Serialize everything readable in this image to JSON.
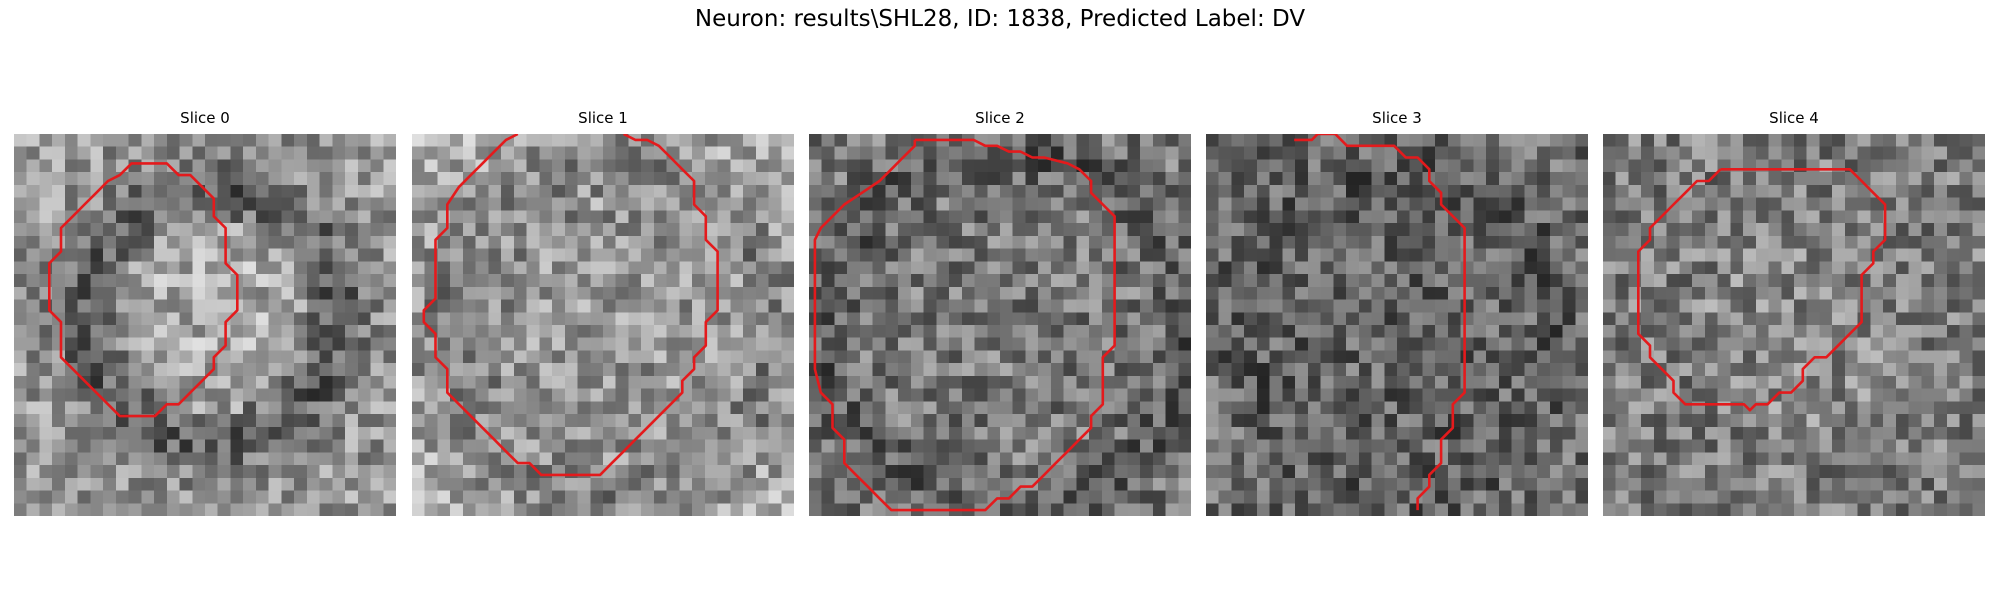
{
  "title": "Neuron: results\\SHL28, ID: 1838, Predicted Label: DV",
  "contour_color": "#e41a1c",
  "panels": [
    {
      "title": "Slice 0",
      "contour": [
        [
          9.2,
          2.0
        ],
        [
          10.4,
          2.0
        ],
        [
          11.2,
          2.8
        ],
        [
          12.0,
          2.8
        ],
        [
          13.6,
          4.4
        ],
        [
          13.6,
          5.6
        ],
        [
          14.4,
          6.4
        ],
        [
          14.4,
          8.8
        ],
        [
          15.2,
          9.6
        ],
        [
          15.2,
          12.0
        ],
        [
          14.4,
          12.8
        ],
        [
          14.4,
          14.4
        ],
        [
          13.6,
          15.2
        ],
        [
          13.6,
          16.0
        ],
        [
          12.8,
          16.8
        ],
        [
          12.0,
          17.6
        ],
        [
          11.2,
          18.4
        ],
        [
          10.4,
          18.4
        ],
        [
          9.6,
          19.2
        ],
        [
          7.2,
          19.2
        ],
        [
          6.4,
          18.4
        ],
        [
          5.6,
          17.6
        ],
        [
          4.8,
          16.8
        ],
        [
          4.0,
          16.0
        ],
        [
          3.2,
          15.2
        ],
        [
          3.2,
          12.8
        ],
        [
          2.4,
          12.0
        ],
        [
          2.4,
          8.8
        ],
        [
          3.2,
          8.0
        ],
        [
          3.2,
          6.4
        ],
        [
          4.0,
          5.6
        ],
        [
          4.8,
          4.8
        ],
        [
          5.6,
          4.0
        ],
        [
          6.4,
          3.2
        ],
        [
          7.2,
          2.8
        ],
        [
          8.0,
          2.0
        ]
      ],
      "closed": true
    },
    {
      "title": "Slice 1",
      "contour": [
        [
          7.2,
          0.0
        ],
        [
          6.4,
          0.4
        ],
        [
          5.6,
          1.2
        ],
        [
          4.8,
          2.0
        ],
        [
          4.0,
          2.8
        ],
        [
          3.2,
          3.6
        ],
        [
          2.4,
          4.8
        ],
        [
          2.4,
          6.4
        ],
        [
          1.6,
          7.2
        ],
        [
          1.6,
          9.6
        ],
        [
          1.6,
          11.2
        ],
        [
          0.8,
          12.0
        ],
        [
          0.8,
          12.8
        ],
        [
          1.6,
          13.6
        ],
        [
          1.6,
          15.2
        ],
        [
          2.4,
          16.0
        ],
        [
          2.4,
          17.6
        ],
        [
          3.2,
          18.4
        ],
        [
          4.0,
          19.2
        ],
        [
          4.8,
          20.0
        ],
        [
          5.6,
          20.8
        ],
        [
          6.4,
          21.6
        ],
        [
          7.2,
          22.4
        ],
        [
          8.0,
          22.4
        ],
        [
          8.8,
          23.2
        ],
        [
          10.4,
          23.2
        ],
        [
          12.0,
          23.2
        ],
        [
          12.8,
          23.2
        ],
        [
          13.6,
          22.4
        ],
        [
          14.4,
          21.6
        ],
        [
          15.2,
          20.8
        ],
        [
          16.0,
          20.0
        ],
        [
          16.8,
          19.2
        ],
        [
          17.6,
          18.4
        ],
        [
          18.4,
          17.6
        ],
        [
          18.4,
          16.8
        ],
        [
          19.2,
          16.0
        ],
        [
          19.2,
          15.2
        ],
        [
          20.0,
          14.4
        ],
        [
          20.0,
          12.8
        ],
        [
          20.8,
          12.0
        ],
        [
          20.8,
          8.0
        ],
        [
          20.0,
          7.2
        ],
        [
          20.0,
          5.6
        ],
        [
          19.2,
          4.8
        ],
        [
          19.2,
          3.2
        ],
        [
          18.4,
          2.4
        ],
        [
          17.6,
          1.6
        ],
        [
          16.8,
          0.8
        ],
        [
          16.0,
          0.4
        ],
        [
          15.2,
          0.4
        ],
        [
          14.4,
          0.0
        ]
      ],
      "closed": false
    },
    {
      "title": "Slice 2",
      "contour": [
        [
          7.2,
          0.4
        ],
        [
          7.2,
          0.8
        ],
        [
          6.4,
          1.6
        ],
        [
          5.6,
          2.4
        ],
        [
          4.8,
          3.2
        ],
        [
          3.6,
          4.0
        ],
        [
          2.4,
          4.8
        ],
        [
          1.6,
          5.6
        ],
        [
          0.8,
          6.4
        ],
        [
          0.4,
          7.2
        ],
        [
          0.4,
          10.4
        ],
        [
          0.4,
          13.6
        ],
        [
          0.4,
          16.0
        ],
        [
          0.8,
          17.6
        ],
        [
          1.6,
          18.4
        ],
        [
          1.6,
          20.0
        ],
        [
          2.4,
          20.8
        ],
        [
          2.4,
          22.4
        ],
        [
          3.2,
          23.2
        ],
        [
          4.0,
          24.0
        ],
        [
          4.8,
          24.8
        ],
        [
          5.6,
          25.6
        ],
        [
          8.0,
          25.6
        ],
        [
          10.4,
          25.6
        ],
        [
          12.0,
          25.6
        ],
        [
          12.8,
          24.8
        ],
        [
          13.6,
          24.8
        ],
        [
          14.4,
          24.0
        ],
        [
          15.2,
          24.0
        ],
        [
          16.0,
          23.2
        ],
        [
          16.8,
          22.4
        ],
        [
          17.6,
          21.6
        ],
        [
          18.4,
          20.8
        ],
        [
          19.2,
          20.0
        ],
        [
          19.2,
          19.2
        ],
        [
          20.0,
          18.4
        ],
        [
          20.0,
          15.2
        ],
        [
          20.8,
          14.4
        ],
        [
          20.8,
          12.0
        ],
        [
          20.8,
          7.2
        ],
        [
          20.8,
          5.6
        ],
        [
          20.0,
          4.8
        ],
        [
          19.2,
          4.0
        ],
        [
          19.2,
          3.2
        ],
        [
          18.4,
          2.4
        ],
        [
          17.6,
          2.0
        ],
        [
          16.0,
          1.6
        ],
        [
          15.2,
          1.6
        ],
        [
          14.4,
          1.2
        ],
        [
          13.6,
          1.2
        ],
        [
          12.8,
          0.8
        ],
        [
          12.0,
          0.8
        ],
        [
          11.2,
          0.4
        ],
        [
          10.4,
          0.4
        ],
        [
          8.8,
          0.4
        ],
        [
          8.0,
          0.4
        ]
      ],
      "closed": true
    },
    {
      "title": "Slice 3",
      "contour": [
        [
          6.0,
          0.4
        ],
        [
          7.2,
          0.4
        ],
        [
          7.6,
          0.0
        ],
        [
          8.8,
          0.0
        ],
        [
          9.6,
          0.8
        ],
        [
          10.4,
          0.8
        ],
        [
          12.8,
          0.8
        ],
        [
          13.6,
          1.6
        ],
        [
          14.4,
          1.6
        ],
        [
          15.2,
          2.4
        ],
        [
          15.2,
          3.2
        ],
        [
          16.0,
          4.0
        ],
        [
          16.0,
          4.8
        ],
        [
          17.6,
          6.4
        ],
        [
          17.6,
          8.8
        ],
        [
          17.6,
          12.0
        ],
        [
          17.6,
          15.2
        ],
        [
          17.6,
          16.8
        ],
        [
          17.6,
          17.6
        ],
        [
          16.8,
          18.4
        ],
        [
          16.8,
          20.0
        ],
        [
          16.0,
          20.8
        ],
        [
          16.0,
          22.4
        ],
        [
          15.2,
          23.2
        ],
        [
          15.2,
          24.0
        ],
        [
          14.4,
          24.8
        ],
        [
          14.4,
          25.6
        ]
      ],
      "closed": false
    },
    {
      "title": "Slice 4",
      "contour": [
        [
          8.0,
          2.4
        ],
        [
          10.4,
          2.4
        ],
        [
          12.8,
          2.4
        ],
        [
          15.2,
          2.4
        ],
        [
          16.8,
          2.4
        ],
        [
          17.6,
          3.2
        ],
        [
          18.4,
          4.0
        ],
        [
          19.2,
          4.8
        ],
        [
          19.2,
          7.2
        ],
        [
          18.4,
          8.0
        ],
        [
          18.4,
          8.8
        ],
        [
          17.6,
          9.6
        ],
        [
          17.6,
          12.8
        ],
        [
          16.8,
          13.6
        ],
        [
          16.0,
          14.4
        ],
        [
          15.2,
          15.2
        ],
        [
          14.4,
          15.2
        ],
        [
          13.6,
          16.0
        ],
        [
          13.6,
          16.8
        ],
        [
          12.8,
          17.6
        ],
        [
          12.0,
          17.6
        ],
        [
          11.2,
          18.4
        ],
        [
          10.4,
          18.4
        ],
        [
          10.0,
          18.8
        ],
        [
          9.6,
          18.4
        ],
        [
          8.8,
          18.4
        ],
        [
          5.6,
          18.4
        ],
        [
          4.8,
          17.6
        ],
        [
          4.8,
          16.8
        ],
        [
          4.0,
          16.0
        ],
        [
          3.2,
          15.2
        ],
        [
          3.2,
          14.4
        ],
        [
          2.4,
          13.6
        ],
        [
          2.4,
          9.6
        ],
        [
          2.4,
          8.0
        ],
        [
          3.2,
          7.2
        ],
        [
          3.2,
          6.4
        ],
        [
          4.0,
          5.6
        ],
        [
          4.8,
          4.8
        ],
        [
          5.6,
          4.0
        ],
        [
          6.4,
          3.2
        ],
        [
          7.2,
          3.2
        ]
      ],
      "closed": true
    }
  ]
}
